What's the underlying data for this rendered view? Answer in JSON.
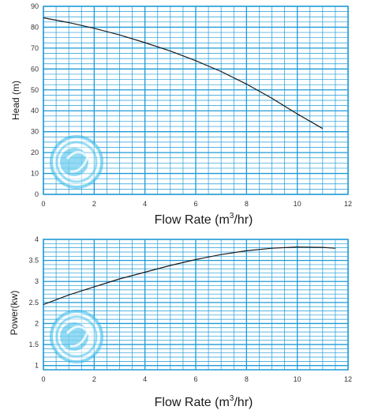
{
  "chart_data": [
    {
      "type": "line",
      "xlabel": "Flow Rate (m3/hr)",
      "xlabel_parts": [
        "Flow Rate (m",
        "3",
        "/hr)"
      ],
      "ylabel": "Head (m)",
      "xlim": [
        0,
        12
      ],
      "ylim": [
        0,
        90
      ],
      "xticks": [
        0,
        2,
        4,
        6,
        8,
        10,
        12
      ],
      "yticks": [
        0,
        10,
        20,
        30,
        40,
        50,
        60,
        70,
        80,
        90
      ],
      "x_minor_step": 0.5,
      "y_minor_step": 2.5,
      "grid": true,
      "grid_color": "#1e9ad6",
      "curve_color": "#1a1a1a",
      "series": [
        {
          "x": [
            0,
            1,
            2,
            3,
            4,
            5,
            6,
            7,
            8,
            9,
            10,
            11
          ],
          "y": [
            84.5,
            82.2,
            79.5,
            76.3,
            72.6,
            68.6,
            64.0,
            58.8,
            52.8,
            46.0,
            38.5,
            31.5
          ]
        }
      ]
    },
    {
      "type": "line",
      "xlabel": "Flow Rate (m3/hr)",
      "xlabel_parts": [
        "Flow Rate (m",
        "3",
        "/hr)"
      ],
      "ylabel": "Power(kw)",
      "xlim": [
        0,
        12
      ],
      "ylim": [
        0.9,
        4
      ],
      "xticks": [
        0,
        2,
        4,
        6,
        8,
        10,
        12
      ],
      "yticks": [
        1,
        1.5,
        2,
        2.5,
        3,
        3.5,
        4
      ],
      "ytick_labels": [
        "1",
        "1.5",
        "2",
        "2.5",
        "3",
        "3.5",
        "4"
      ],
      "x_minor_step": 0.5,
      "y_minor_step": 0.1,
      "grid": true,
      "grid_color": "#1e9ad6",
      "curve_color": "#1a1a1a",
      "series": [
        {
          "x": [
            0,
            1,
            2,
            3,
            4,
            5,
            6,
            7,
            8,
            9,
            10,
            11,
            11.5
          ],
          "y": [
            2.45,
            2.68,
            2.87,
            3.06,
            3.22,
            3.38,
            3.52,
            3.64,
            3.73,
            3.79,
            3.82,
            3.81,
            3.79
          ]
        }
      ]
    }
  ],
  "watermark": {
    "color": "#29b6e8"
  }
}
